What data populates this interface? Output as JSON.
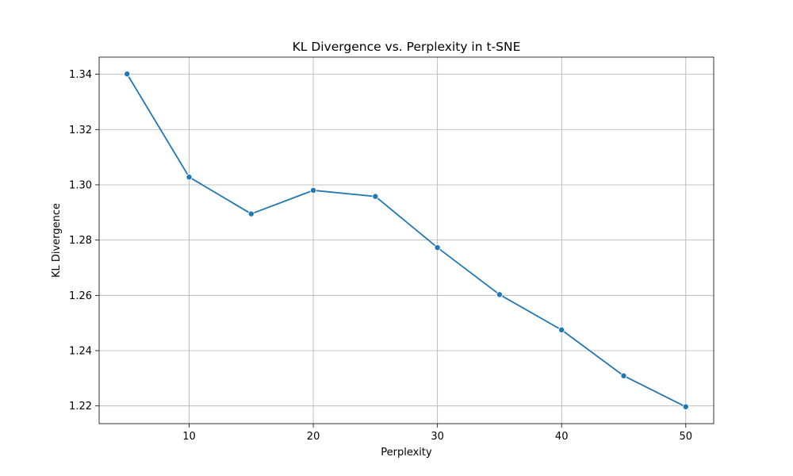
{
  "chart_data": {
    "type": "line",
    "title": "KL Divergence vs. Perplexity in t-SNE",
    "xlabel": "Perplexity",
    "ylabel": "KL Divergence",
    "x": [
      5,
      10,
      15,
      20,
      25,
      30,
      35,
      40,
      45,
      50
    ],
    "series": [
      {
        "values": [
          1.3401,
          1.3028,
          1.2895,
          1.298,
          1.2958,
          1.2773,
          1.2603,
          1.2475,
          1.2309,
          1.2197
        ],
        "color": "#1f77b4",
        "marker": "circle"
      }
    ],
    "xlim": [
      2.75,
      52.25
    ],
    "ylim": [
      1.2136,
      1.3462
    ],
    "xticks": [
      10,
      20,
      30,
      40,
      50
    ],
    "xtick_labels": [
      "10",
      "20",
      "30",
      "40",
      "50"
    ],
    "yticks": [
      1.22,
      1.24,
      1.26,
      1.28,
      1.3,
      1.32,
      1.34
    ],
    "ytick_labels": [
      "1.22",
      "1.24",
      "1.26",
      "1.28",
      "1.30",
      "1.32",
      "1.34"
    ],
    "grid": true,
    "grid_color": "#b0b0b0"
  }
}
